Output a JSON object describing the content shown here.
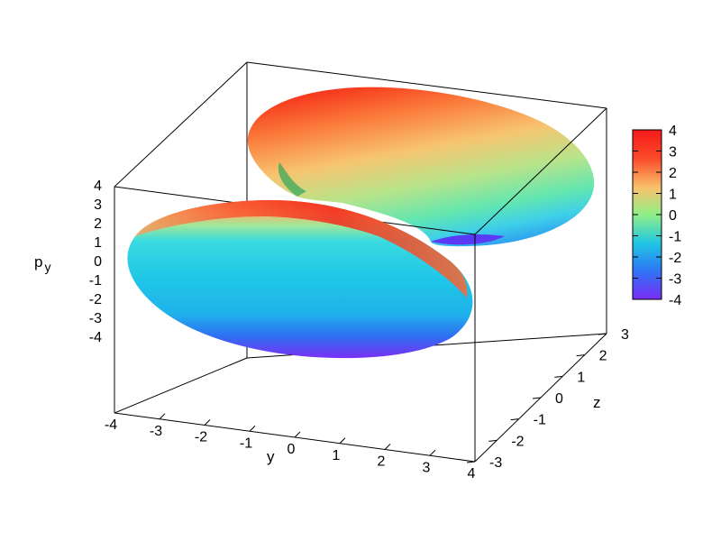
{
  "chart_data": {
    "type": "surface3d",
    "xlabel": "y",
    "ylabel": "z",
    "zlabel_main": "p",
    "zlabel_sub": "y",
    "x_range": [
      -4,
      4
    ],
    "y_range": [
      -3,
      3
    ],
    "z_range": [
      -4,
      4
    ],
    "x_ticks": [
      "-4",
      "-3",
      "-2",
      "-1",
      "0",
      "1",
      "2",
      "3",
      "4"
    ],
    "y_ticks": [
      "-3",
      "-2",
      "-1",
      "0",
      "1",
      "2",
      "3"
    ],
    "z_ticks": [
      "-4",
      "-3",
      "-2",
      "-1",
      "0",
      "1",
      "2",
      "3",
      "4"
    ],
    "colorbar": {
      "range": [
        -4,
        4
      ],
      "ticks": [
        "-4",
        "-3",
        "-2",
        "-1",
        "0",
        "1",
        "2",
        "3",
        "4"
      ],
      "colormap": "rainbow",
      "colors": [
        "#7a2cf6",
        "#2d76f5",
        "#20c6e4",
        "#8fef86",
        "#f9c16a",
        "#fb4a2a",
        "#f51a1a"
      ]
    },
    "surfaces": [
      {
        "name": "",
        "sheet": "upper",
        "color_range": [
          -4,
          4
        ]
      },
      {
        "name": "",
        "sheet": "lower",
        "color_range": [
          -4,
          4
        ]
      }
    ]
  }
}
